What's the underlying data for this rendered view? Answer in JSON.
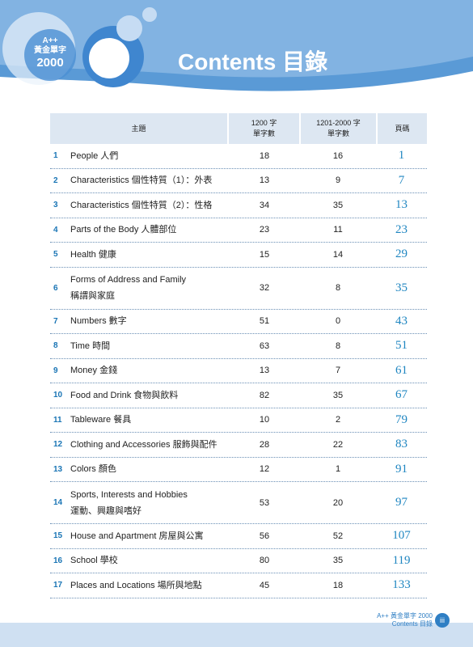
{
  "header": {
    "logo": {
      "line1": "A++",
      "line2": "黃金單字",
      "line3": "2000"
    },
    "title": "Contents 目錄"
  },
  "table": {
    "columns": {
      "topic": "主題",
      "words_1200": [
        "1200 字",
        "單字數"
      ],
      "words_2000": [
        "1201-2000 字",
        "單字數"
      ],
      "page": "頁碼"
    },
    "rows": [
      {
        "no": "1",
        "topic": [
          "People 人們"
        ],
        "words_1200": 18,
        "words_2000": 16,
        "page": 1
      },
      {
        "no": "2",
        "topic": [
          "Characteristics 個性特質（1）：外表"
        ],
        "words_1200": 13,
        "words_2000": 9,
        "page": 7
      },
      {
        "no": "3",
        "topic": [
          "Characteristics 個性特質（2）：性格"
        ],
        "words_1200": 34,
        "words_2000": 35,
        "page": 13
      },
      {
        "no": "4",
        "topic": [
          "Parts of the Body 人體部位"
        ],
        "words_1200": 23,
        "words_2000": 11,
        "page": 23
      },
      {
        "no": "5",
        "topic": [
          "Health 健康"
        ],
        "words_1200": 15,
        "words_2000": 14,
        "page": 29
      },
      {
        "no": "6",
        "topic": [
          "Forms of Address and Family",
          "稱謂與家庭"
        ],
        "words_1200": 32,
        "words_2000": 8,
        "page": 35
      },
      {
        "no": "7",
        "topic": [
          "Numbers 數字"
        ],
        "words_1200": 51,
        "words_2000": 0,
        "page": 43
      },
      {
        "no": "8",
        "topic": [
          "Time 時間"
        ],
        "words_1200": 63,
        "words_2000": 8,
        "page": 51
      },
      {
        "no": "9",
        "topic": [
          "Money 金錢"
        ],
        "words_1200": 13,
        "words_2000": 7,
        "page": 61
      },
      {
        "no": "10",
        "topic": [
          "Food and Drink 食物與飲料"
        ],
        "words_1200": 82,
        "words_2000": 35,
        "page": 67
      },
      {
        "no": "11",
        "topic": [
          "Tableware 餐具"
        ],
        "words_1200": 10,
        "words_2000": 2,
        "page": 79
      },
      {
        "no": "12",
        "topic": [
          "Clothing and Accessories 服飾與配件"
        ],
        "words_1200": 28,
        "words_2000": 22,
        "page": 83
      },
      {
        "no": "13",
        "topic": [
          "Colors 顏色"
        ],
        "words_1200": 12,
        "words_2000": 1,
        "page": 91
      },
      {
        "no": "14",
        "topic": [
          "Sports, Interests and Hobbies",
          "運動、興趣與嗜好"
        ],
        "words_1200": 53,
        "words_2000": 20,
        "page": 97
      },
      {
        "no": "15",
        "topic": [
          "House and Apartment 房屋與公寓"
        ],
        "words_1200": 56,
        "words_2000": 52,
        "page": 107
      },
      {
        "no": "16",
        "topic": [
          "School 學校"
        ],
        "words_1200": 80,
        "words_2000": 35,
        "page": 119
      },
      {
        "no": "17",
        "topic": [
          "Places and Locations 場所與地點"
        ],
        "words_1200": 45,
        "words_2000": 18,
        "page": 133
      }
    ]
  },
  "footer": {
    "book": "A++ 黃金單字 2000",
    "section": "Contents 目錄",
    "page": "iii"
  }
}
